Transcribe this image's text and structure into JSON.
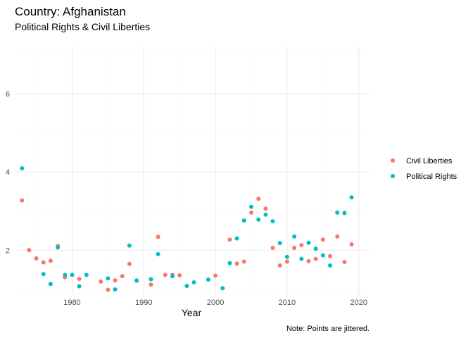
{
  "chart_data": {
    "type": "scatter",
    "title": "Country: Afghanistan",
    "subtitle": "Political Rights & Civil Liberties",
    "xlabel": "Year",
    "ylabel": "",
    "caption": "Note: Points are jittered.",
    "xlim": [
      1972,
      2021.5
    ],
    "ylim": [
      0.82,
      7.2
    ],
    "x_ticks": [
      1980,
      1990,
      2000,
      2010,
      2020
    ],
    "y_ticks": [
      2,
      4,
      6
    ],
    "grid": true,
    "legend_position": "right",
    "series": [
      {
        "name": "Civil Liberties",
        "color": "#F8766D",
        "points": [
          [
            1973,
            3.27
          ],
          [
            1974,
            2.0
          ],
          [
            1975,
            1.79
          ],
          [
            1976,
            1.69
          ],
          [
            1977,
            1.73
          ],
          [
            1978,
            2.11
          ],
          [
            1979,
            1.31
          ],
          [
            1981,
            1.27
          ],
          [
            1984,
            1.2
          ],
          [
            1985,
            0.99
          ],
          [
            1986,
            1.23
          ],
          [
            1987,
            1.34
          ],
          [
            1988,
            1.65
          ],
          [
            1989,
            1.22
          ],
          [
            1991,
            1.12
          ],
          [
            1992,
            2.34
          ],
          [
            1993,
            1.37
          ],
          [
            1994,
            1.37
          ],
          [
            1995,
            1.36
          ],
          [
            2000,
            1.35
          ],
          [
            2002,
            2.27
          ],
          [
            2003,
            1.66
          ],
          [
            2004,
            1.71
          ],
          [
            2005,
            2.96
          ],
          [
            2006,
            3.31
          ],
          [
            2007,
            3.06
          ],
          [
            2008,
            2.06
          ],
          [
            2009,
            1.61
          ],
          [
            2010,
            1.71
          ],
          [
            2011,
            2.06
          ],
          [
            2012,
            2.13
          ],
          [
            2013,
            1.72
          ],
          [
            2014,
            1.78
          ],
          [
            2015,
            2.27
          ],
          [
            2016,
            1.85
          ],
          [
            2017,
            2.35
          ],
          [
            2018,
            1.7
          ],
          [
            2019,
            2.15
          ]
        ]
      },
      {
        "name": "Political Rights",
        "color": "#00BFC4",
        "points": [
          [
            1973,
            4.09
          ],
          [
            1976,
            1.39
          ],
          [
            1977,
            1.14
          ],
          [
            1978,
            2.07
          ],
          [
            1979,
            1.37
          ],
          [
            1980,
            1.37
          ],
          [
            1981,
            1.08
          ],
          [
            1982,
            1.37
          ],
          [
            1985,
            1.28
          ],
          [
            1986,
            1.0
          ],
          [
            1988,
            2.12
          ],
          [
            1989,
            1.23
          ],
          [
            1991,
            1.26
          ],
          [
            1992,
            1.9
          ],
          [
            1994,
            1.34
          ],
          [
            1996,
            1.09
          ],
          [
            1997,
            1.18
          ],
          [
            1999,
            1.25
          ],
          [
            2001,
            1.03
          ],
          [
            2002,
            1.67
          ],
          [
            2003,
            2.3
          ],
          [
            2004,
            2.76
          ],
          [
            2005,
            3.11
          ],
          [
            2006,
            2.78
          ],
          [
            2007,
            2.91
          ],
          [
            2008,
            2.74
          ],
          [
            2009,
            2.18
          ],
          [
            2010,
            1.83
          ],
          [
            2011,
            2.35
          ],
          [
            2012,
            1.78
          ],
          [
            2013,
            2.19
          ],
          [
            2014,
            2.04
          ],
          [
            2015,
            1.87
          ],
          [
            2016,
            1.61
          ],
          [
            2017,
            2.96
          ],
          [
            2018,
            2.95
          ],
          [
            2019,
            3.35
          ]
        ]
      }
    ]
  }
}
